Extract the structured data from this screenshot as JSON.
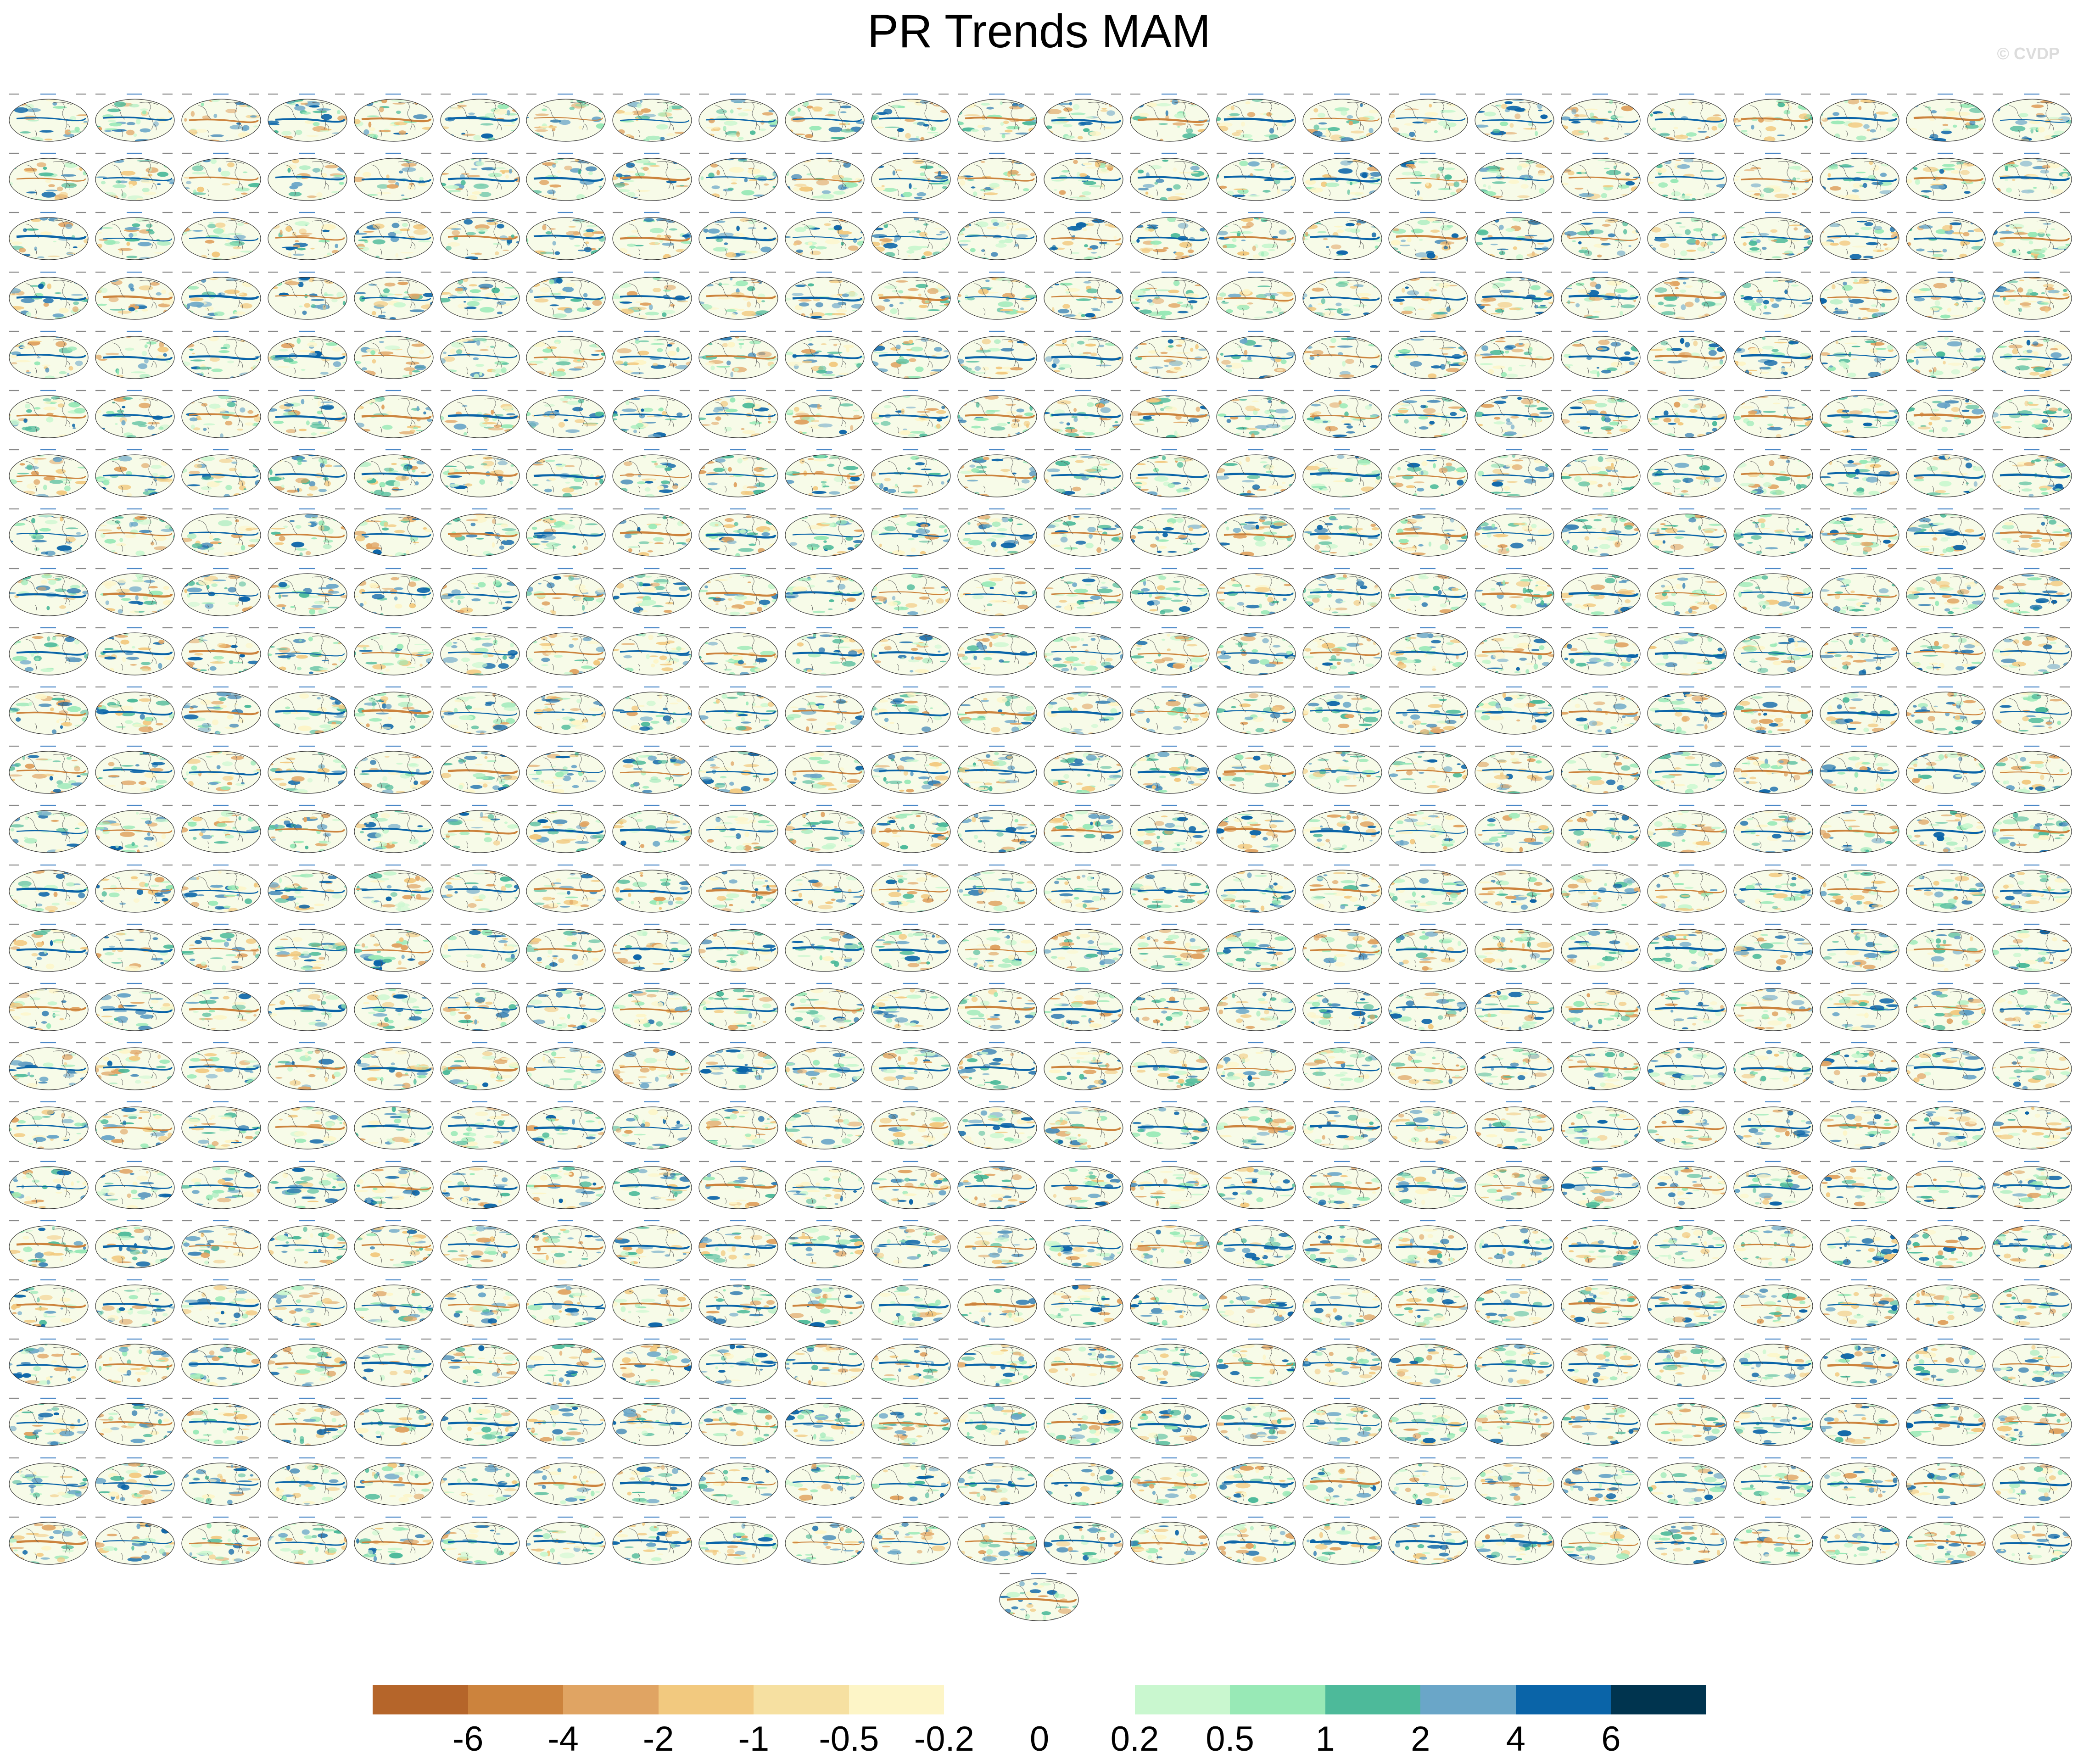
{
  "page": {
    "title": "PR Trends MAM",
    "watermark": "© CVDP"
  },
  "chart_data": {
    "type": "heatmap",
    "title": "PR Trends MAM",
    "layout": {
      "columns": 24,
      "rows": 25,
      "extra_panels": 1,
      "total_panels": 601
    },
    "colorbar": {
      "tick_labels": [
        "-6",
        "-4",
        "-2",
        "-1",
        "-0.5",
        "-0.2",
        "0",
        "0.2",
        "0.5",
        "1",
        "2",
        "4",
        "6"
      ],
      "colors": [
        "#b5652a",
        "#cc833d",
        "#e0a463",
        "#f2c97f",
        "#f6e0a1",
        "#fdf5c7",
        "#ffffff",
        "#ffffff",
        "#c9f7cf",
        "#98e9b6",
        "#4dba9a",
        "#6aa6c8",
        "#0a64a8",
        "#00344f"
      ]
    }
  }
}
